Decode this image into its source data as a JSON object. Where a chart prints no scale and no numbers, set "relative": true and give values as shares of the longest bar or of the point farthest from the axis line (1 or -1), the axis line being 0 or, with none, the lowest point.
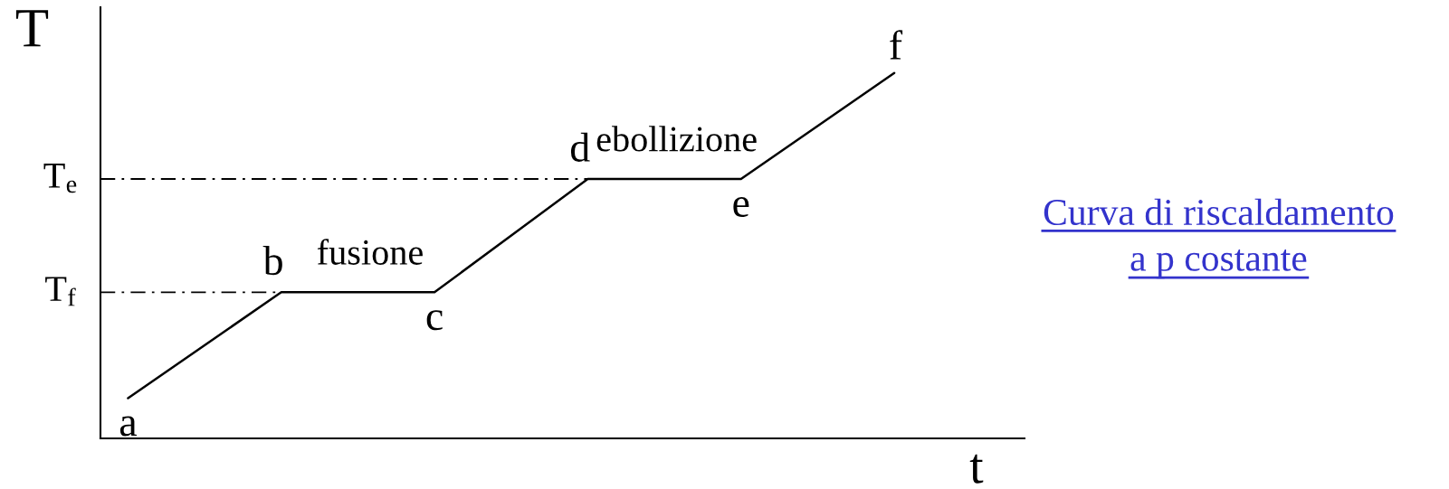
{
  "chart_data": {
    "type": "line",
    "title": "Curva di riscaldamento\na p costante",
    "xlabel": "t",
    "ylabel": "T",
    "relative": true,
    "categories": [
      null,
      null,
      null,
      null,
      null,
      null
    ],
    "series": [
      {
        "color": "#000000",
        "values": [
          0.11,
          0.4,
          0.4,
          0.71,
          0.71,
          1
        ]
      }
    ],
    "ref_lines": [
      {
        "axis": "y",
        "value": 0.4,
        "label": "T$_{f}$",
        "color": "#000000",
        "line_style": "dashdot"
      },
      {
        "axis": "y",
        "value": 0.71,
        "label": "T$_{e}$",
        "color": "#000000",
        "line_style": "dashdot"
      }
    ],
    "annotations": [
      {
        "text": "a",
        "y": 0.11
      },
      {
        "text": "b",
        "y": 0.4
      },
      {
        "text": "c",
        "y": 0.4
      },
      {
        "text": "d",
        "y": 0.71
      },
      {
        "text": "e",
        "y": 0.71
      },
      {
        "text": "f",
        "y": 1
      },
      {
        "text": "fusione",
        "y": 0.4
      },
      {
        "text": "ebollizione",
        "y": 0.71
      }
    ]
  }
}
